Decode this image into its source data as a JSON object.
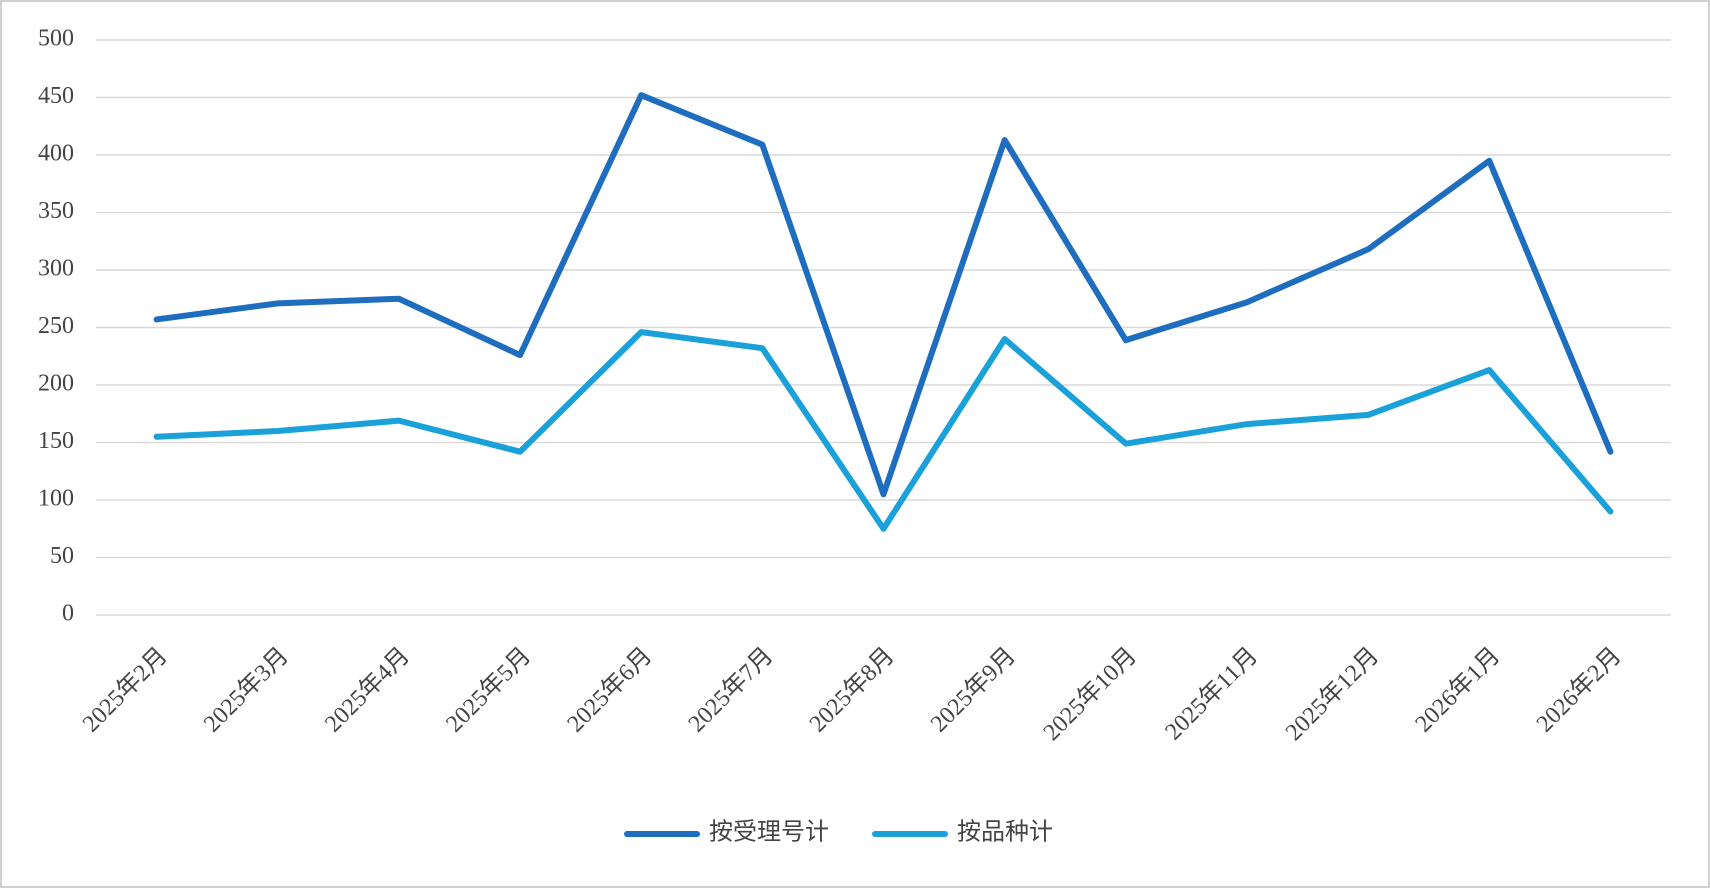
{
  "chart_data": {
    "type": "line",
    "categories": [
      "2025年2月",
      "2025年3月",
      "2025年4月",
      "2025年5月",
      "2025年6月",
      "2025年7月",
      "2025年8月",
      "2025年9月",
      "2025年10月",
      "2025年11月",
      "2025年12月",
      "2026年1月",
      "2026年2月"
    ],
    "series": [
      {
        "name": "按受理号计",
        "color": "#1f6dbf",
        "values": [
          257,
          271,
          275,
          226,
          452,
          409,
          105,
          413,
          239,
          272,
          318,
          395,
          142
        ]
      },
      {
        "name": "按品种计",
        "color": "#1ba1d9",
        "values": [
          155,
          160,
          169,
          142,
          246,
          232,
          75,
          240,
          149,
          166,
          174,
          213,
          90
        ]
      }
    ],
    "ylim": [
      0,
      500
    ],
    "yticks": [
      0,
      50,
      100,
      150,
      200,
      250,
      300,
      350,
      400,
      450,
      500
    ],
    "grid": true,
    "legend": "bottom"
  }
}
